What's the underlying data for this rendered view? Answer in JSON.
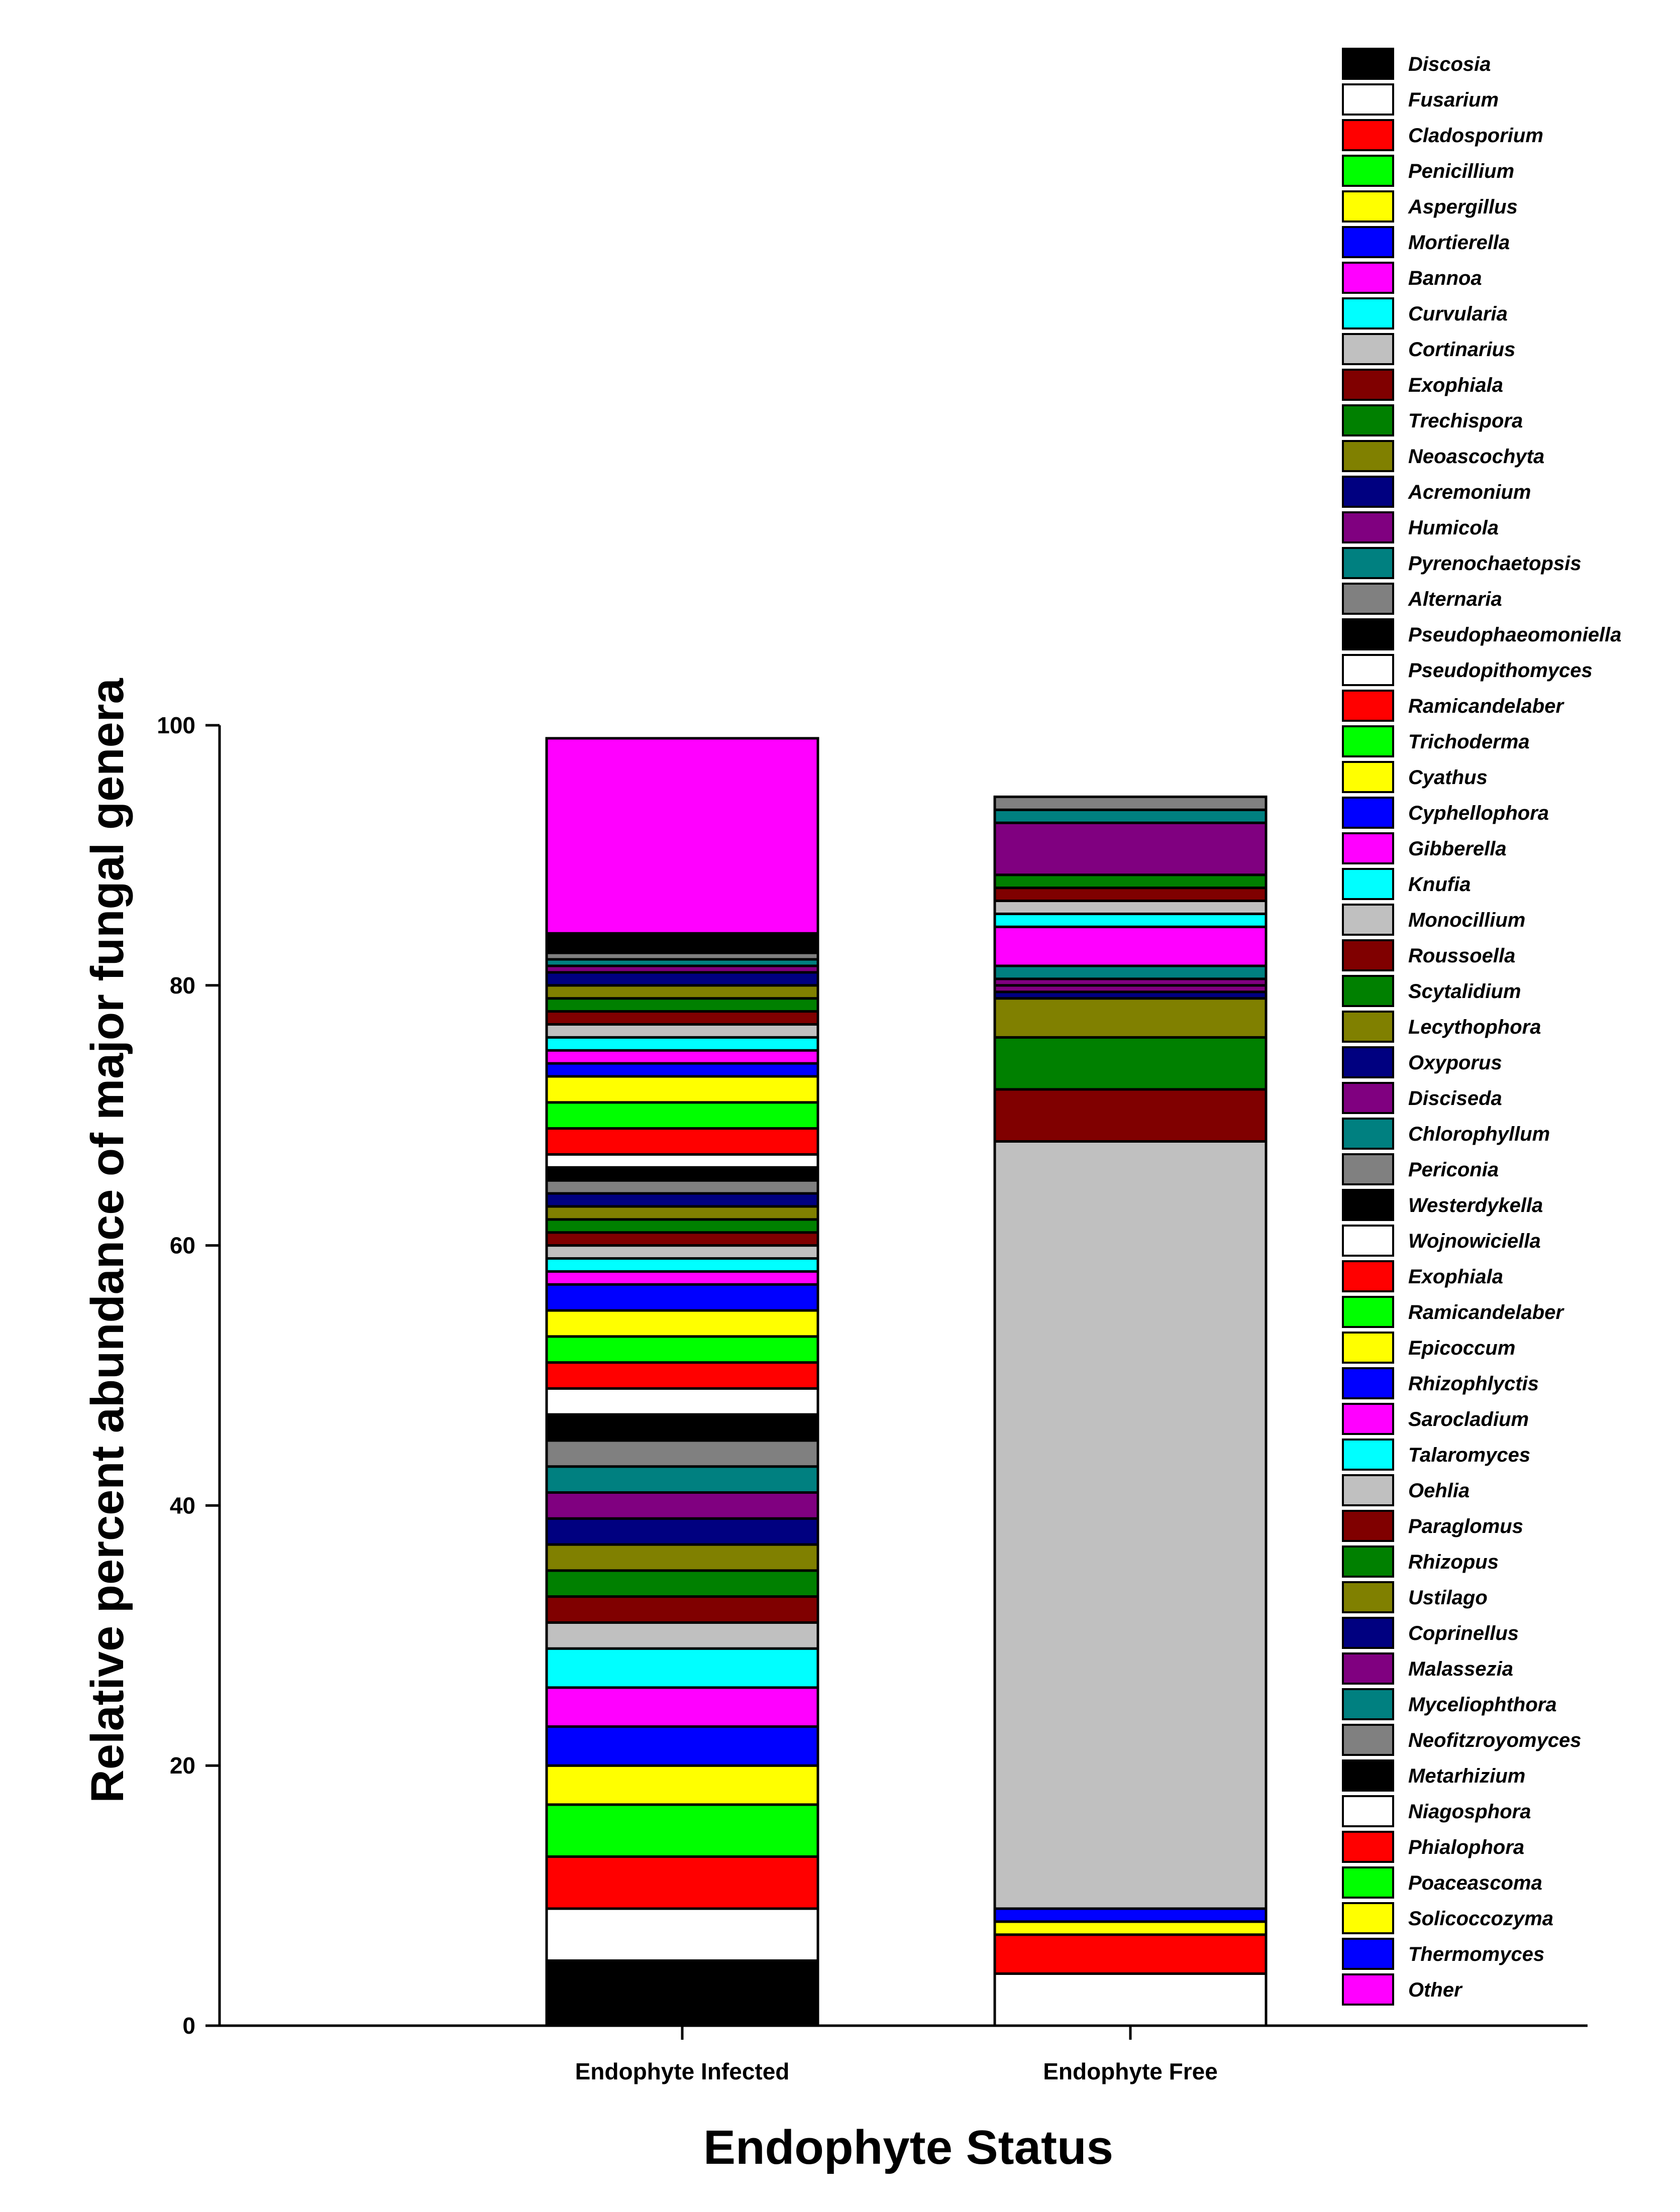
{
  "chart_data": {
    "type": "bar",
    "stacked": true,
    "title": "",
    "xlabel": "Endophyte Status",
    "ylabel": "Relative percent abundance of major fungal genera",
    "ylim": [
      0,
      100
    ],
    "yticks": [
      0,
      20,
      40,
      60,
      80,
      100
    ],
    "legend_position": "right",
    "categories": [
      "Endophyte Infected",
      "Endophyte Free"
    ],
    "series": [
      {
        "name": "Discosia",
        "color": "#000000",
        "values": [
          5,
          0
        ]
      },
      {
        "name": "Fusarium",
        "color": "#FFFFFF",
        "values": [
          4,
          4
        ]
      },
      {
        "name": "Cladosporium",
        "color": "#FF0000",
        "values": [
          4,
          3
        ]
      },
      {
        "name": "Penicillium",
        "color": "#00FF00",
        "values": [
          4,
          0
        ]
      },
      {
        "name": "Aspergillus",
        "color": "#FFFF00",
        "values": [
          3,
          1
        ]
      },
      {
        "name": "Mortierella",
        "color": "#0000FF",
        "values": [
          3,
          1
        ]
      },
      {
        "name": "Bannoa",
        "color": "#FF00FF",
        "values": [
          3,
          0
        ]
      },
      {
        "name": "Curvularia",
        "color": "#00FFFF",
        "values": [
          3,
          0
        ]
      },
      {
        "name": "Cortinarius",
        "color": "#C0C0C0",
        "values": [
          2,
          59
        ]
      },
      {
        "name": "Exophiala",
        "color": "#800000",
        "values": [
          2,
          4
        ]
      },
      {
        "name": "Trechispora",
        "color": "#008000",
        "values": [
          2,
          4
        ]
      },
      {
        "name": "Neoascochyta",
        "color": "#808000",
        "values": [
          2,
          3
        ]
      },
      {
        "name": "Acremonium",
        "color": "#000080",
        "values": [
          2,
          0.5
        ]
      },
      {
        "name": "Humicola",
        "color": "#800080",
        "values": [
          2,
          0.5
        ]
      },
      {
        "name": "Pyrenochaetopsis",
        "color": "#008080",
        "values": [
          2,
          0
        ]
      },
      {
        "name": "Alternaria",
        "color": "#808080",
        "values": [
          2,
          0
        ]
      },
      {
        "name": "Pseudophaeomoniella",
        "color": "#000000",
        "values": [
          2,
          0
        ]
      },
      {
        "name": "Pseudopithomyces",
        "color": "#FFFFFF",
        "values": [
          2,
          0
        ]
      },
      {
        "name": "Ramicandelaber",
        "color": "#FF0000",
        "values": [
          2,
          0
        ]
      },
      {
        "name": "Trichoderma",
        "color": "#00FF00",
        "values": [
          2,
          0
        ]
      },
      {
        "name": "Cyathus",
        "color": "#FFFF00",
        "values": [
          2,
          0
        ]
      },
      {
        "name": "Cyphellophora",
        "color": "#0000FF",
        "values": [
          2,
          0
        ]
      },
      {
        "name": "Gibberella",
        "color": "#FF00FF",
        "values": [
          1,
          0
        ]
      },
      {
        "name": "Knufia",
        "color": "#00FFFF",
        "values": [
          1,
          0
        ]
      },
      {
        "name": "Monocillium",
        "color": "#C0C0C0",
        "values": [
          1,
          0
        ]
      },
      {
        "name": "Roussoella",
        "color": "#800000",
        "values": [
          1,
          0
        ]
      },
      {
        "name": "Scytalidium",
        "color": "#008000",
        "values": [
          1,
          0
        ]
      },
      {
        "name": "Lecythophora",
        "color": "#808000",
        "values": [
          1,
          0
        ]
      },
      {
        "name": "Oxyporus",
        "color": "#000080",
        "values": [
          1,
          0
        ]
      },
      {
        "name": "Disciseda",
        "color": "#800080",
        "values": [
          0,
          0.5
        ]
      },
      {
        "name": "Chlorophyllum",
        "color": "#008080",
        "values": [
          0,
          1
        ]
      },
      {
        "name": "Periconia",
        "color": "#808080",
        "values": [
          1,
          0
        ]
      },
      {
        "name": "Westerdykella",
        "color": "#000000",
        "values": [
          1,
          0
        ]
      },
      {
        "name": "Wojnowiciella",
        "color": "#FFFFFF",
        "values": [
          1,
          0
        ]
      },
      {
        "name": "Exophiala",
        "color": "#FF0000",
        "values": [
          2,
          0
        ]
      },
      {
        "name": "Ramicandelaber",
        "color": "#00FF00",
        "values": [
          2,
          0
        ]
      },
      {
        "name": "Epicoccum",
        "color": "#FFFF00",
        "values": [
          2,
          0
        ]
      },
      {
        "name": "Rhizophlyctis",
        "color": "#0000FF",
        "values": [
          1,
          0
        ]
      },
      {
        "name": "Sarocladium",
        "color": "#FF00FF",
        "values": [
          1,
          3
        ]
      },
      {
        "name": "Talaromyces",
        "color": "#00FFFF",
        "values": [
          1,
          1
        ]
      },
      {
        "name": "Oehlia",
        "color": "#C0C0C0",
        "values": [
          1,
          1
        ]
      },
      {
        "name": "Paraglomus",
        "color": "#800000",
        "values": [
          1,
          1
        ]
      },
      {
        "name": "Rhizopus",
        "color": "#008000",
        "values": [
          1,
          1
        ]
      },
      {
        "name": "Ustilago",
        "color": "#808000",
        "values": [
          1,
          0
        ]
      },
      {
        "name": "Coprinellus",
        "color": "#000080",
        "values": [
          1,
          0
        ]
      },
      {
        "name": "Malassezia",
        "color": "#800080",
        "values": [
          0.5,
          4
        ]
      },
      {
        "name": "Myceliophthora",
        "color": "#008080",
        "values": [
          0.5,
          1
        ]
      },
      {
        "name": "Neofitzroyomyces",
        "color": "#808080",
        "values": [
          0.5,
          1
        ]
      },
      {
        "name": "Metarhizium",
        "color": "#000000",
        "values": [
          1.5,
          0
        ]
      },
      {
        "name": "Niagosphora",
        "color": "#FFFFFF",
        "values": [
          0,
          0
        ]
      },
      {
        "name": "Phialophora",
        "color": "#FF0000",
        "values": [
          0,
          0
        ]
      },
      {
        "name": "Poaceascoma",
        "color": "#00FF00",
        "values": [
          0,
          0
        ]
      },
      {
        "name": "Solicoccozyma",
        "color": "#FFFF00",
        "values": [
          0,
          0
        ]
      },
      {
        "name": "Thermomyces",
        "color": "#0000FF",
        "values": [
          0,
          0
        ]
      },
      {
        "name": "Other",
        "color": "#FF00FF",
        "values": [
          15,
          0
        ]
      }
    ]
  }
}
